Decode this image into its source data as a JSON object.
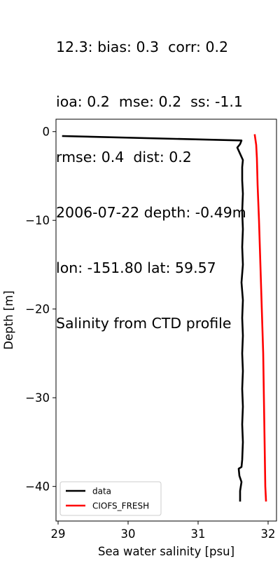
{
  "title_lines": [
    "12.3: bias: 0.3  corr: 0.2",
    "ioa: 0.2  mse: 0.2  ss: -1.1",
    "rmse: 0.4  dist: 0.2",
    "2006-07-22 depth: -0.49m",
    "lon: -151.80 lat: 59.57",
    "Salinity from CTD profile"
  ],
  "chart_data": {
    "type": "line",
    "xlabel": "Sea water salinity [psu]",
    "ylabel": "Depth [m]",
    "xlim": [
      28.97,
      32.12
    ],
    "ylim": [
      -43.9,
      1.4
    ],
    "xticks": [
      29,
      30,
      31,
      32
    ],
    "yticks": [
      0,
      -10,
      -20,
      -30,
      -40
    ],
    "ytick_labels": [
      "0",
      "−10",
      "−20",
      "−30",
      "−40"
    ],
    "grid": false,
    "legend_position": "lower left",
    "series": [
      {
        "name": "data",
        "color": "#000000",
        "points": [
          [
            29.07,
            -0.5
          ],
          [
            31.62,
            -1.0
          ],
          [
            31.6,
            -1.4
          ],
          [
            31.56,
            -1.8
          ],
          [
            31.6,
            -2.5
          ],
          [
            31.64,
            -3.2
          ],
          [
            31.63,
            -4.0
          ],
          [
            31.63,
            -5.5
          ],
          [
            31.64,
            -7.0
          ],
          [
            31.63,
            -9.0
          ],
          [
            31.64,
            -11.0
          ],
          [
            31.63,
            -13.0
          ],
          [
            31.64,
            -15.0
          ],
          [
            31.62,
            -17.0
          ],
          [
            31.64,
            -19.0
          ],
          [
            31.63,
            -21.0
          ],
          [
            31.64,
            -23.0
          ],
          [
            31.63,
            -25.0
          ],
          [
            31.64,
            -27.0
          ],
          [
            31.63,
            -29.0
          ],
          [
            31.64,
            -31.0
          ],
          [
            31.63,
            -33.0
          ],
          [
            31.64,
            -35.0
          ],
          [
            31.63,
            -37.0
          ],
          [
            31.62,
            -37.8
          ],
          [
            31.58,
            -38.0
          ],
          [
            31.59,
            -38.8
          ],
          [
            31.62,
            -39.5
          ],
          [
            31.6,
            -40.5
          ],
          [
            31.6,
            -41.6
          ]
        ]
      },
      {
        "name": "CIOFS_FRESH",
        "color": "#ff0000",
        "points": [
          [
            31.81,
            -0.4
          ],
          [
            31.83,
            -1.5
          ],
          [
            31.84,
            -3.0
          ],
          [
            31.85,
            -6.0
          ],
          [
            31.87,
            -10.0
          ],
          [
            31.89,
            -15.0
          ],
          [
            31.91,
            -20.0
          ],
          [
            31.93,
            -25.0
          ],
          [
            31.94,
            -30.0
          ],
          [
            31.95,
            -35.0
          ],
          [
            31.96,
            -40.0
          ],
          [
            31.97,
            -41.6
          ]
        ]
      }
    ]
  }
}
